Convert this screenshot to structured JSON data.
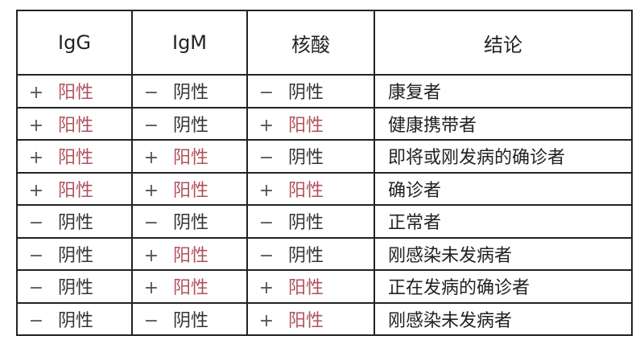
{
  "headers": [
    "IgG",
    "IgM",
    "核酸",
    "结论"
  ],
  "rows": [
    {
      "igg": {
        "sign": "+",
        "text": "阳性",
        "positive": true
      },
      "igm": {
        "sign": "−",
        "text": "阴性",
        "positive": false
      },
      "na": {
        "sign": "−",
        "text": "阴性",
        "positive": false
      },
      "conclusion": "康复者"
    },
    {
      "igg": {
        "sign": "+",
        "text": "阳性",
        "positive": true
      },
      "igm": {
        "sign": "−",
        "text": "阴性",
        "positive": false
      },
      "na": {
        "sign": "+",
        "text": "阳性",
        "positive": true
      },
      "conclusion": "健康携带者"
    },
    {
      "igg": {
        "sign": "+",
        "text": "阳性",
        "positive": true
      },
      "igm": {
        "sign": "+",
        "text": "阳性",
        "positive": true
      },
      "na": {
        "sign": "−",
        "text": "阴性",
        "positive": false
      },
      "conclusion": "即将或刚发病的确诊者"
    },
    {
      "igg": {
        "sign": "+",
        "text": "阳性",
        "positive": true
      },
      "igm": {
        "sign": "+",
        "text": "阳性",
        "positive": true
      },
      "na": {
        "sign": "+",
        "text": "阳性",
        "positive": true
      },
      "conclusion": "确诊者"
    },
    {
      "igg": {
        "sign": "−",
        "text": "阴性",
        "positive": false
      },
      "igm": {
        "sign": "−",
        "text": "阴性",
        "positive": false
      },
      "na": {
        "sign": "−",
        "text": "阴性",
        "positive": false
      },
      "conclusion": "正常者"
    },
    {
      "igg": {
        "sign": "−",
        "text": "阴性",
        "positive": false
      },
      "igm": {
        "sign": "+",
        "text": "阳性",
        "positive": true
      },
      "na": {
        "sign": "−",
        "text": "阴性",
        "positive": false
      },
      "conclusion": "刚感染未发病者"
    },
    {
      "igg": {
        "sign": "−",
        "text": "阴性",
        "positive": false
      },
      "igm": {
        "sign": "+",
        "text": "阳性",
        "positive": true
      },
      "na": {
        "sign": "+",
        "text": "阳性",
        "positive": true
      },
      "conclusion": "正在发病的确诊者"
    },
    {
      "igg": {
        "sign": "−",
        "text": "阴性",
        "positive": false
      },
      "igm": {
        "sign": "−",
        "text": "阴性",
        "positive": false
      },
      "na": {
        "sign": "+",
        "text": "阳性",
        "positive": true
      },
      "conclusion": "刚感染未发病者"
    }
  ],
  "colors": {
    "positive": "#b0505c",
    "negative": "#333333",
    "border": "#222222"
  }
}
